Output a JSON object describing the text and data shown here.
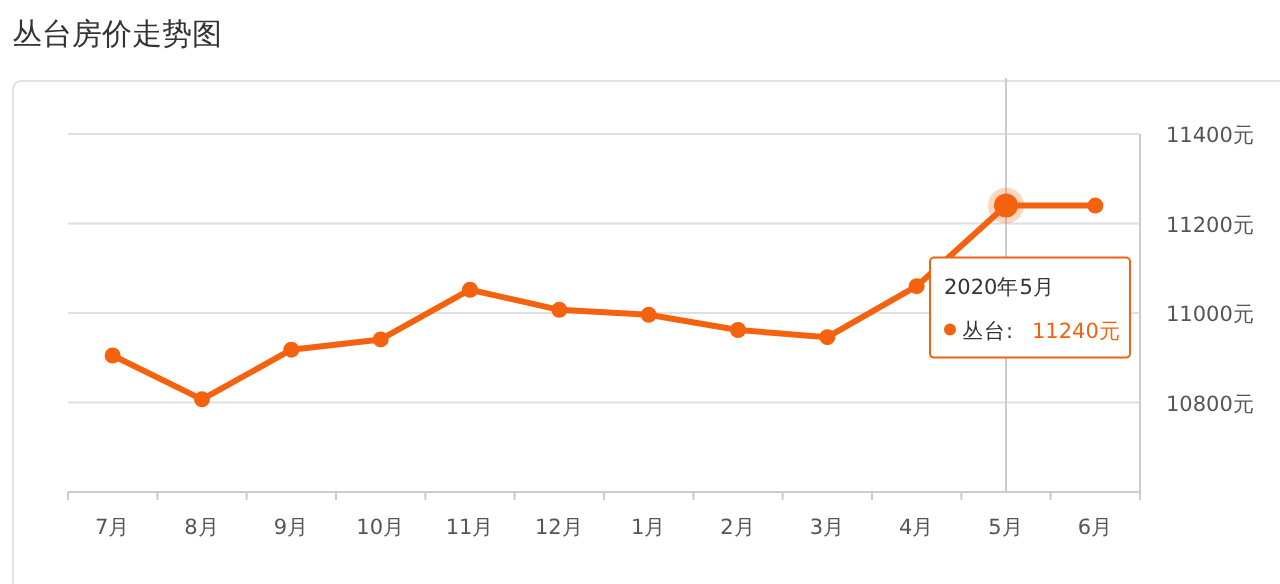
{
  "chart_data": {
    "type": "line",
    "title": "丛台房价走势图",
    "categories": [
      "7月",
      "8月",
      "9月",
      "10月",
      "11月",
      "12月",
      "1月",
      "2月",
      "3月",
      "4月",
      "5月",
      "6月"
    ],
    "series": [
      {
        "name": "丛台:",
        "color": "#f5620f",
        "values": [
          10905,
          10807,
          10918,
          10941,
          11052,
          11007,
          10996,
          10962,
          10946,
          11060,
          11240,
          11240
        ]
      }
    ],
    "ylim": [
      10600,
      11400
    ],
    "yticks": [
      {
        "value": 10600,
        "label": null
      },
      {
        "value": 10800,
        "label": "10800元"
      },
      {
        "value": 11000,
        "label": "11000元"
      },
      {
        "value": 11200,
        "label": "11200元"
      },
      {
        "value": 11400,
        "label": "11400元"
      }
    ],
    "grid": "y",
    "marker": "circle",
    "line_style": "solid",
    "ref_lines": [
      {
        "axis": "x",
        "value": "5月",
        "color": "#cccccc"
      }
    ],
    "legend": "right",
    "annotations": [
      "2020年5月",
      "11240元"
    ]
  }
}
